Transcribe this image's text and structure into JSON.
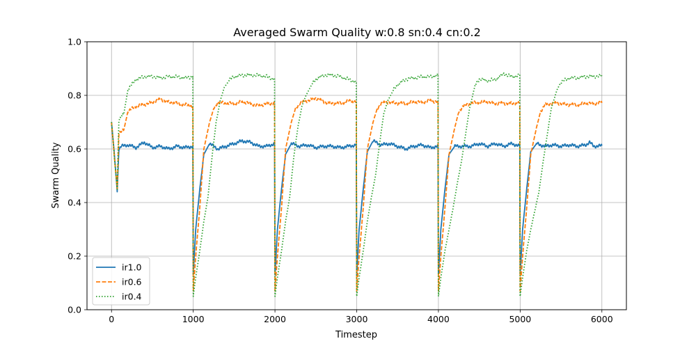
{
  "chart_data": {
    "type": "line",
    "title": "Averaged Swarm Quality w:0.8 sn:0.4 cn:0.2",
    "xlabel": "Timestep",
    "ylabel": "Swarm Quality",
    "xlim": [
      -300,
      6300
    ],
    "ylim": [
      0.0,
      1.0
    ],
    "xticks": [
      0,
      1000,
      2000,
      3000,
      4000,
      5000,
      6000
    ],
    "xtick_labels": [
      "0",
      "1000",
      "2000",
      "3000",
      "4000",
      "5000",
      "6000"
    ],
    "yticks": [
      0.0,
      0.2,
      0.4,
      0.6,
      0.8,
      1.0
    ],
    "ytick_labels": [
      "0.0",
      "0.2",
      "0.4",
      "0.6",
      "0.8",
      "1.0"
    ],
    "grid": true,
    "legend_position": "lower-left",
    "series": [
      {
        "name": "ir1.0",
        "color": "#1f77b4",
        "style": "solid",
        "points": [
          [
            0,
            0.7
          ],
          [
            35,
            0.58
          ],
          [
            70,
            0.44
          ],
          [
            90,
            0.6
          ],
          [
            120,
            0.61
          ],
          [
            200,
            0.615
          ],
          [
            300,
            0.605
          ],
          [
            400,
            0.625
          ],
          [
            500,
            0.605
          ],
          [
            600,
            0.61
          ],
          [
            700,
            0.6
          ],
          [
            800,
            0.61
          ],
          [
            900,
            0.605
          ],
          [
            995,
            0.61
          ],
          [
            1000,
            0.13
          ],
          [
            1030,
            0.3
          ],
          [
            1080,
            0.45
          ],
          [
            1130,
            0.58
          ],
          [
            1200,
            0.62
          ],
          [
            1300,
            0.6
          ],
          [
            1400,
            0.61
          ],
          [
            1500,
            0.62
          ],
          [
            1600,
            0.63
          ],
          [
            1700,
            0.625
          ],
          [
            1800,
            0.61
          ],
          [
            1900,
            0.61
          ],
          [
            1995,
            0.62
          ],
          [
            2000,
            0.13
          ],
          [
            2030,
            0.3
          ],
          [
            2080,
            0.45
          ],
          [
            2130,
            0.58
          ],
          [
            2200,
            0.62
          ],
          [
            2300,
            0.61
          ],
          [
            2400,
            0.615
          ],
          [
            2500,
            0.605
          ],
          [
            2600,
            0.61
          ],
          [
            2700,
            0.61
          ],
          [
            2800,
            0.605
          ],
          [
            2900,
            0.61
          ],
          [
            2995,
            0.615
          ],
          [
            3000,
            0.13
          ],
          [
            3030,
            0.3
          ],
          [
            3080,
            0.45
          ],
          [
            3130,
            0.59
          ],
          [
            3200,
            0.63
          ],
          [
            3300,
            0.615
          ],
          [
            3400,
            0.62
          ],
          [
            3500,
            0.61
          ],
          [
            3600,
            0.6
          ],
          [
            3700,
            0.61
          ],
          [
            3800,
            0.615
          ],
          [
            3900,
            0.605
          ],
          [
            3995,
            0.61
          ],
          [
            4000,
            0.13
          ],
          [
            4030,
            0.3
          ],
          [
            4080,
            0.45
          ],
          [
            4130,
            0.58
          ],
          [
            4200,
            0.61
          ],
          [
            4300,
            0.61
          ],
          [
            4400,
            0.61
          ],
          [
            4500,
            0.62
          ],
          [
            4600,
            0.61
          ],
          [
            4700,
            0.62
          ],
          [
            4800,
            0.61
          ],
          [
            4900,
            0.62
          ],
          [
            4995,
            0.61
          ],
          [
            5000,
            0.13
          ],
          [
            5030,
            0.3
          ],
          [
            5080,
            0.45
          ],
          [
            5130,
            0.59
          ],
          [
            5200,
            0.62
          ],
          [
            5300,
            0.61
          ],
          [
            5400,
            0.615
          ],
          [
            5500,
            0.61
          ],
          [
            5600,
            0.615
          ],
          [
            5700,
            0.61
          ],
          [
            5800,
            0.615
          ],
          [
            5850,
            0.625
          ],
          [
            5900,
            0.61
          ],
          [
            6000,
            0.612
          ]
        ]
      },
      {
        "name": "ir0.6",
        "color": "#ff7f0e",
        "style": "dashed",
        "points": [
          [
            0,
            0.7
          ],
          [
            35,
            0.57
          ],
          [
            70,
            0.45
          ],
          [
            90,
            0.66
          ],
          [
            150,
            0.67
          ],
          [
            200,
            0.74
          ],
          [
            300,
            0.76
          ],
          [
            400,
            0.765
          ],
          [
            500,
            0.775
          ],
          [
            600,
            0.785
          ],
          [
            700,
            0.775
          ],
          [
            800,
            0.77
          ],
          [
            900,
            0.765
          ],
          [
            995,
            0.76
          ],
          [
            1000,
            0.07
          ],
          [
            1030,
            0.2
          ],
          [
            1080,
            0.38
          ],
          [
            1130,
            0.6
          ],
          [
            1200,
            0.7
          ],
          [
            1250,
            0.75
          ],
          [
            1300,
            0.775
          ],
          [
            1400,
            0.77
          ],
          [
            1500,
            0.77
          ],
          [
            1600,
            0.775
          ],
          [
            1700,
            0.77
          ],
          [
            1800,
            0.76
          ],
          [
            1900,
            0.77
          ],
          [
            1995,
            0.77
          ],
          [
            2000,
            0.07
          ],
          [
            2030,
            0.2
          ],
          [
            2080,
            0.38
          ],
          [
            2130,
            0.6
          ],
          [
            2200,
            0.7
          ],
          [
            2250,
            0.75
          ],
          [
            2300,
            0.77
          ],
          [
            2400,
            0.78
          ],
          [
            2500,
            0.79
          ],
          [
            2600,
            0.775
          ],
          [
            2700,
            0.77
          ],
          [
            2800,
            0.77
          ],
          [
            2900,
            0.78
          ],
          [
            2995,
            0.775
          ],
          [
            3000,
            0.07
          ],
          [
            3030,
            0.2
          ],
          [
            3080,
            0.38
          ],
          [
            3130,
            0.6
          ],
          [
            3200,
            0.7
          ],
          [
            3250,
            0.75
          ],
          [
            3300,
            0.77
          ],
          [
            3400,
            0.775
          ],
          [
            3500,
            0.77
          ],
          [
            3600,
            0.77
          ],
          [
            3700,
            0.775
          ],
          [
            3800,
            0.775
          ],
          [
            3900,
            0.78
          ],
          [
            3995,
            0.775
          ],
          [
            4000,
            0.07
          ],
          [
            4030,
            0.2
          ],
          [
            4080,
            0.38
          ],
          [
            4130,
            0.58
          ],
          [
            4200,
            0.68
          ],
          [
            4250,
            0.74
          ],
          [
            4300,
            0.76
          ],
          [
            4400,
            0.77
          ],
          [
            4500,
            0.775
          ],
          [
            4600,
            0.775
          ],
          [
            4700,
            0.77
          ],
          [
            4800,
            0.77
          ],
          [
            4900,
            0.77
          ],
          [
            4995,
            0.77
          ],
          [
            5000,
            0.07
          ],
          [
            5030,
            0.2
          ],
          [
            5080,
            0.38
          ],
          [
            5130,
            0.58
          ],
          [
            5200,
            0.68
          ],
          [
            5250,
            0.74
          ],
          [
            5300,
            0.765
          ],
          [
            5400,
            0.77
          ],
          [
            5500,
            0.77
          ],
          [
            5600,
            0.765
          ],
          [
            5700,
            0.765
          ],
          [
            5800,
            0.77
          ],
          [
            5900,
            0.77
          ],
          [
            6000,
            0.772
          ]
        ]
      },
      {
        "name": "ir0.4",
        "color": "#2ca02c",
        "style": "dotted",
        "points": [
          [
            0,
            0.7
          ],
          [
            35,
            0.57
          ],
          [
            70,
            0.45
          ],
          [
            90,
            0.71
          ],
          [
            150,
            0.73
          ],
          [
            200,
            0.82
          ],
          [
            250,
            0.84
          ],
          [
            300,
            0.86
          ],
          [
            400,
            0.87
          ],
          [
            500,
            0.87
          ],
          [
            600,
            0.865
          ],
          [
            700,
            0.87
          ],
          [
            800,
            0.87
          ],
          [
            900,
            0.865
          ],
          [
            995,
            0.87
          ],
          [
            1000,
            0.05
          ],
          [
            1030,
            0.12
          ],
          [
            1080,
            0.22
          ],
          [
            1130,
            0.33
          ],
          [
            1180,
            0.42
          ],
          [
            1230,
            0.57
          ],
          [
            1280,
            0.7
          ],
          [
            1330,
            0.78
          ],
          [
            1380,
            0.83
          ],
          [
            1450,
            0.86
          ],
          [
            1500,
            0.87
          ],
          [
            1600,
            0.875
          ],
          [
            1700,
            0.875
          ],
          [
            1800,
            0.875
          ],
          [
            1900,
            0.87
          ],
          [
            1995,
            0.86
          ],
          [
            2000,
            0.05
          ],
          [
            2030,
            0.12
          ],
          [
            2080,
            0.22
          ],
          [
            2130,
            0.33
          ],
          [
            2180,
            0.42
          ],
          [
            2230,
            0.57
          ],
          [
            2280,
            0.68
          ],
          [
            2330,
            0.76
          ],
          [
            2380,
            0.8
          ],
          [
            2450,
            0.84
          ],
          [
            2500,
            0.86
          ],
          [
            2600,
            0.875
          ],
          [
            2700,
            0.875
          ],
          [
            2800,
            0.87
          ],
          [
            2900,
            0.86
          ],
          [
            2995,
            0.85
          ],
          [
            3000,
            0.05
          ],
          [
            3030,
            0.12
          ],
          [
            3080,
            0.22
          ],
          [
            3130,
            0.33
          ],
          [
            3180,
            0.42
          ],
          [
            3230,
            0.5
          ],
          [
            3280,
            0.62
          ],
          [
            3330,
            0.73
          ],
          [
            3380,
            0.78
          ],
          [
            3450,
            0.82
          ],
          [
            3500,
            0.84
          ],
          [
            3600,
            0.86
          ],
          [
            3700,
            0.865
          ],
          [
            3800,
            0.87
          ],
          [
            3900,
            0.87
          ],
          [
            3995,
            0.875
          ],
          [
            4000,
            0.05
          ],
          [
            4030,
            0.12
          ],
          [
            4080,
            0.22
          ],
          [
            4130,
            0.3
          ],
          [
            4180,
            0.38
          ],
          [
            4230,
            0.47
          ],
          [
            4280,
            0.55
          ],
          [
            4330,
            0.65
          ],
          [
            4380,
            0.75
          ],
          [
            4450,
            0.84
          ],
          [
            4500,
            0.86
          ],
          [
            4600,
            0.855
          ],
          [
            4700,
            0.86
          ],
          [
            4800,
            0.88
          ],
          [
            4900,
            0.87
          ],
          [
            4995,
            0.875
          ],
          [
            5000,
            0.05
          ],
          [
            5030,
            0.12
          ],
          [
            5080,
            0.22
          ],
          [
            5130,
            0.3
          ],
          [
            5180,
            0.37
          ],
          [
            5230,
            0.44
          ],
          [
            5280,
            0.55
          ],
          [
            5330,
            0.65
          ],
          [
            5380,
            0.75
          ],
          [
            5450,
            0.82
          ],
          [
            5500,
            0.85
          ],
          [
            5600,
            0.865
          ],
          [
            5700,
            0.865
          ],
          [
            5800,
            0.87
          ],
          [
            5900,
            0.87
          ],
          [
            6000,
            0.872
          ]
        ]
      }
    ]
  }
}
